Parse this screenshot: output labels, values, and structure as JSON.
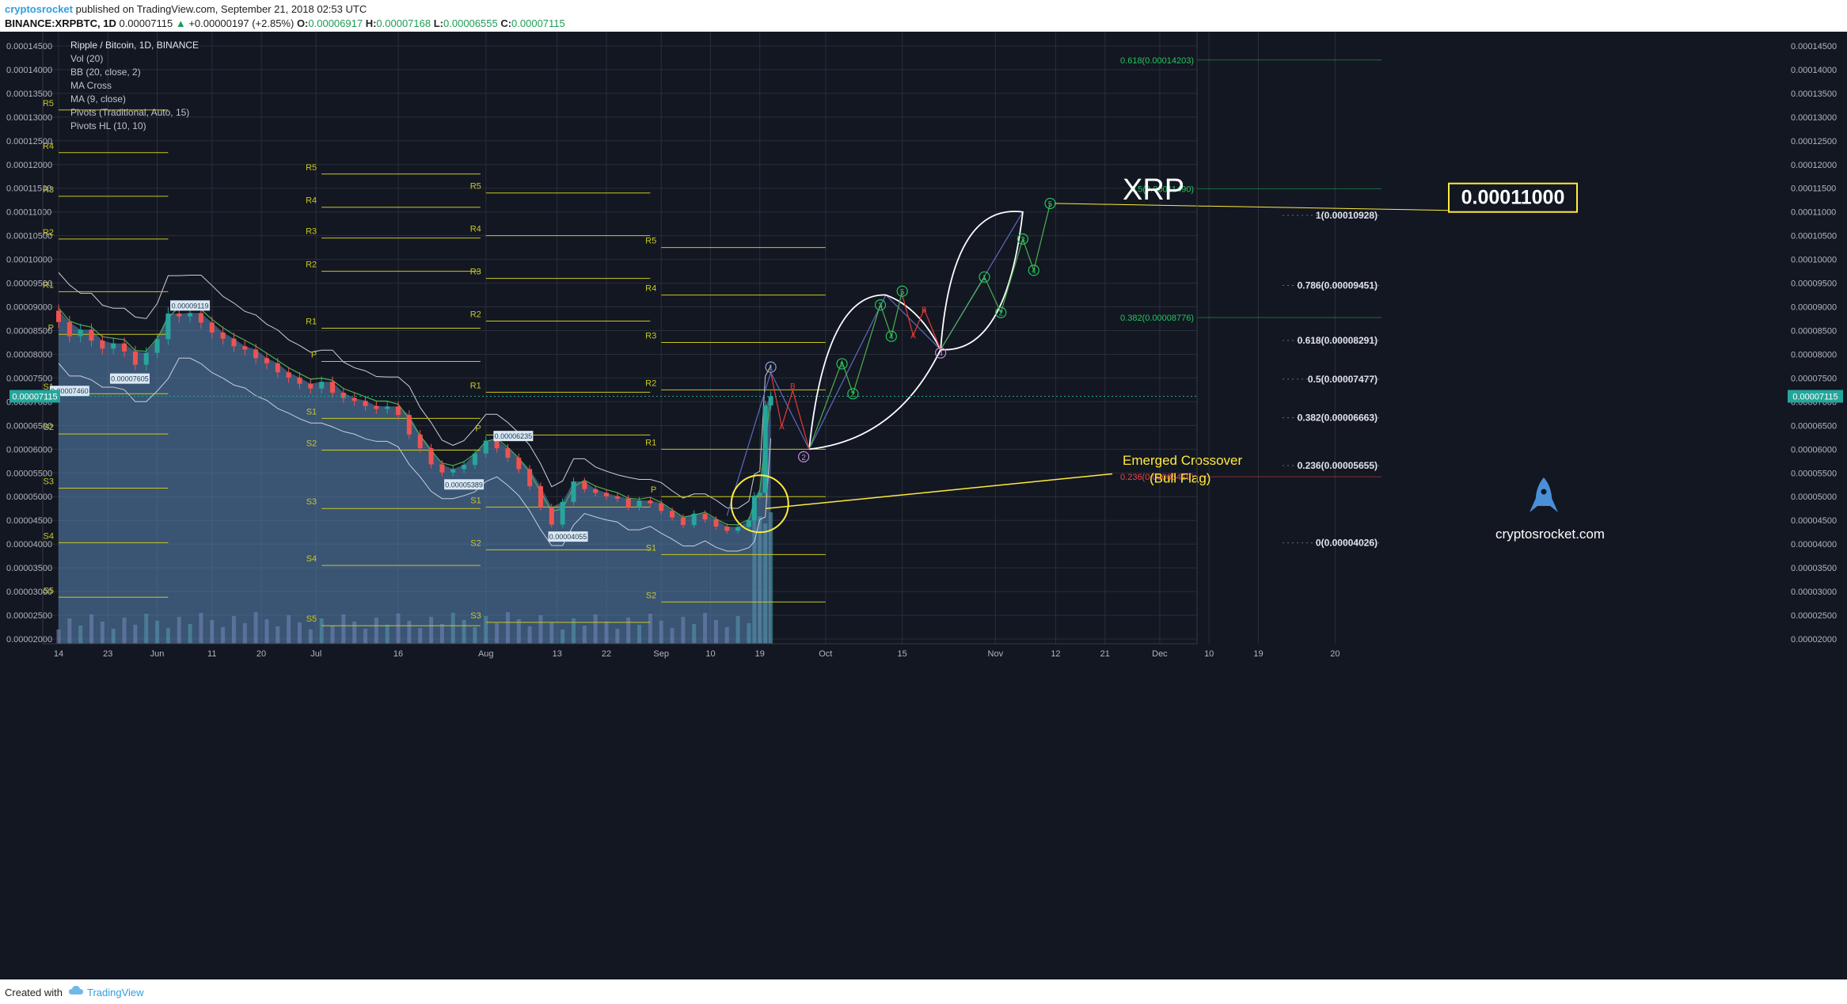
{
  "header": {
    "author": "cryptosrocket",
    "published": "published on TradingView.com, September 21, 2018 02:53 UTC",
    "symbol": "BINANCE:XRPBTC, 1D",
    "last": "0.00007115",
    "change": "+0.00000197 (+2.85%)",
    "o_label": "O:",
    "o": "0.00006917",
    "h_label": "H:",
    "h": "0.00007168",
    "l_label": "L:",
    "l": "0.00006555",
    "c_label": "C:",
    "c": "0.00007115",
    "up_arrow": "▲"
  },
  "footer": {
    "created_with": "Created with",
    "brand": "TradingView"
  },
  "colors": {
    "background": "#131722",
    "grid": "#2a2e39",
    "text": "#b2b5be",
    "up": "#26a69a",
    "down": "#ef5350",
    "pivot": "#c8c81e",
    "fib_green": "#22c55e",
    "fib_red": "#ef4444",
    "wave_green": "#4caf50",
    "wave_red": "#e53935",
    "wave_blue": "#5c6bc0",
    "band_fill": "#5b86b8",
    "highlight": "#ffeb3b"
  },
  "chart_data": {
    "type": "candlestick",
    "title": "Ripple / Bitcoin, 1D, BINANCE",
    "indicators": [
      "Vol (20)",
      "BB (20, close, 2)",
      "MA Cross",
      "MA (9, close)",
      "Pivots (Traditional, Auto, 15)",
      "Pivots HL (10, 10)"
    ],
    "y_axis": {
      "ylim": [
        1.9e-05,
        0.000148
      ],
      "ticks": [
        "0.00014500",
        "0.00014000",
        "0.00013500",
        "0.00013000",
        "0.00012500",
        "0.00012000",
        "0.00011500",
        "0.00011000",
        "0.00010500",
        "0.00010000",
        "0.00009500",
        "0.00009000",
        "0.00008500",
        "0.00008000",
        "0.00007500",
        "0.00007000",
        "0.00006500",
        "0.00006000",
        "0.00005500",
        "0.00005000",
        "0.00004500",
        "0.00004000",
        "0.00003500",
        "0.00003000",
        "0.00002500",
        "0.00002000"
      ],
      "tick_values": [
        0.000145,
        0.00014,
        0.000135,
        0.00013,
        0.000125,
        0.00012,
        0.000115,
        0.00011,
        0.000105,
        0.0001,
        9.5e-05,
        9e-05,
        8.5e-05,
        8e-05,
        7.5e-05,
        7e-05,
        6.5e-05,
        6e-05,
        5.5e-05,
        5e-05,
        4.5e-05,
        4e-05,
        3.5e-05,
        3e-05,
        2.5e-05,
        2e-05
      ],
      "current_price_label": "0.00007115",
      "current_price": 7.115e-05
    },
    "x_axis": {
      "ticks": [
        "14",
        "23",
        "Jun",
        "11",
        "20",
        "Jul",
        "16",
        "Aug",
        "13",
        "22",
        "Sep",
        "10",
        "19",
        "Oct",
        "15",
        "Nov",
        "12",
        "21",
        "Dec",
        "10",
        "19",
        "20"
      ],
      "tick_days": [
        0,
        9,
        18,
        28,
        37,
        47,
        62,
        78,
        91,
        100,
        110,
        119,
        128,
        140,
        154,
        171,
        182,
        191,
        201,
        210,
        219,
        233
      ]
    },
    "price_series": [
      {
        "d": 0,
        "o": 8.92e-05,
        "c": 8.68e-05
      },
      {
        "d": 2,
        "o": 8.68e-05,
        "c": 8.38e-05
      },
      {
        "d": 4,
        "o": 8.38e-05,
        "c": 8.52e-05
      },
      {
        "d": 6,
        "o": 8.52e-05,
        "c": 8.29e-05
      },
      {
        "d": 8,
        "o": 8.29e-05,
        "c": 8.12e-05
      },
      {
        "d": 10,
        "o": 8.12e-05,
        "c": 8.23e-05
      },
      {
        "d": 12,
        "o": 8.23e-05,
        "c": 8.06e-05
      },
      {
        "d": 14,
        "o": 8.06e-05,
        "c": 7.78e-05
      },
      {
        "d": 16,
        "o": 7.78e-05,
        "c": 8.03e-05
      },
      {
        "d": 18,
        "o": 8.03e-05,
        "c": 8.32e-05
      },
      {
        "d": 20,
        "o": 8.32e-05,
        "c": 8.86e-05
      },
      {
        "d": 22,
        "o": 8.86e-05,
        "c": 8.8e-05
      },
      {
        "d": 24,
        "o": 8.8e-05,
        "c": 8.87e-05
      },
      {
        "d": 26,
        "o": 8.87e-05,
        "c": 8.67e-05
      },
      {
        "d": 28,
        "o": 8.67e-05,
        "c": 8.46e-05
      },
      {
        "d": 30,
        "o": 8.46e-05,
        "c": 8.33e-05
      },
      {
        "d": 32,
        "o": 8.33e-05,
        "c": 8.17e-05
      },
      {
        "d": 34,
        "o": 8.17e-05,
        "c": 8.1e-05
      },
      {
        "d": 36,
        "o": 8.1e-05,
        "c": 7.92e-05
      },
      {
        "d": 38,
        "o": 7.92e-05,
        "c": 7.81e-05
      },
      {
        "d": 40,
        "o": 7.81e-05,
        "c": 7.62e-05
      },
      {
        "d": 42,
        "o": 7.62e-05,
        "c": 7.51e-05
      },
      {
        "d": 44,
        "o": 7.51e-05,
        "c": 7.38e-05
      },
      {
        "d": 46,
        "o": 7.38e-05,
        "c": 7.28e-05
      },
      {
        "d": 48,
        "o": 7.28e-05,
        "c": 7.42e-05
      },
      {
        "d": 50,
        "o": 7.42e-05,
        "c": 7.19e-05
      },
      {
        "d": 52,
        "o": 7.19e-05,
        "c": 7.08e-05
      },
      {
        "d": 54,
        "o": 7.08e-05,
        "c": 7.02e-05
      },
      {
        "d": 56,
        "o": 7.02e-05,
        "c": 6.91e-05
      },
      {
        "d": 58,
        "o": 6.91e-05,
        "c": 6.85e-05
      },
      {
        "d": 60,
        "o": 6.85e-05,
        "c": 6.9e-05
      },
      {
        "d": 62,
        "o": 6.9e-05,
        "c": 6.72e-05
      },
      {
        "d": 64,
        "o": 6.72e-05,
        "c": 6.31e-05
      },
      {
        "d": 66,
        "o": 6.31e-05,
        "c": 6.02e-05
      },
      {
        "d": 68,
        "o": 6.02e-05,
        "c": 5.68e-05
      },
      {
        "d": 70,
        "o": 5.68e-05,
        "c": 5.51e-05
      },
      {
        "d": 72,
        "o": 5.51e-05,
        "c": 5.58e-05
      },
      {
        "d": 74,
        "o": 5.58e-05,
        "c": 5.67e-05
      },
      {
        "d": 76,
        "o": 5.67e-05,
        "c": 5.91e-05
      },
      {
        "d": 78,
        "o": 5.91e-05,
        "c": 6.18e-05
      },
      {
        "d": 80,
        "o": 6.18e-05,
        "c": 6.02e-05
      },
      {
        "d": 82,
        "o": 6.02e-05,
        "c": 5.82e-05
      },
      {
        "d": 84,
        "o": 5.82e-05,
        "c": 5.58e-05
      },
      {
        "d": 86,
        "o": 5.58e-05,
        "c": 5.22e-05
      },
      {
        "d": 88,
        "o": 5.22e-05,
        "c": 4.78e-05
      },
      {
        "d": 90,
        "o": 4.78e-05,
        "c": 4.41e-05
      },
      {
        "d": 92,
        "o": 4.41e-05,
        "c": 4.89e-05
      },
      {
        "d": 94,
        "o": 4.89e-05,
        "c": 5.32e-05
      },
      {
        "d": 96,
        "o": 5.32e-05,
        "c": 5.16e-05
      },
      {
        "d": 98,
        "o": 5.16e-05,
        "c": 5.08e-05
      },
      {
        "d": 100,
        "o": 5.08e-05,
        "c": 5.01e-05
      },
      {
        "d": 102,
        "o": 5.01e-05,
        "c": 4.96e-05
      },
      {
        "d": 104,
        "o": 4.96e-05,
        "c": 4.78e-05
      },
      {
        "d": 106,
        "o": 4.78e-05,
        "c": 4.92e-05
      },
      {
        "d": 108,
        "o": 4.92e-05,
        "c": 4.86e-05
      },
      {
        "d": 110,
        "o": 4.86e-05,
        "c": 4.7e-05
      },
      {
        "d": 112,
        "o": 4.7e-05,
        "c": 4.56e-05
      },
      {
        "d": 114,
        "o": 4.56e-05,
        "c": 4.4e-05
      },
      {
        "d": 116,
        "o": 4.4e-05,
        "c": 4.64e-05
      },
      {
        "d": 118,
        "o": 4.64e-05,
        "c": 4.52e-05
      },
      {
        "d": 120,
        "o": 4.52e-05,
        "c": 4.37e-05
      },
      {
        "d": 122,
        "o": 4.37e-05,
        "c": 4.28e-05
      },
      {
        "d": 124,
        "o": 4.28e-05,
        "c": 4.36e-05
      },
      {
        "d": 126,
        "o": 4.36e-05,
        "c": 4.5e-05
      },
      {
        "d": 127,
        "o": 4.5e-05,
        "c": 5.02e-05
      },
      {
        "d": 128,
        "o": 5.02e-05,
        "c": 5.08e-05
      },
      {
        "d": 129,
        "o": 5.08e-05,
        "c": 6.92e-05
      },
      {
        "d": 130,
        "o": 6.92e-05,
        "c": 7.115e-05
      }
    ],
    "price_labels": [
      {
        "d": 2,
        "v": 7.22e-05,
        "text": "0.00007460"
      },
      {
        "d": 13,
        "v": 7.48e-05,
        "text": "0.00007605"
      },
      {
        "d": 24,
        "v": 9.02e-05,
        "text": "0.00009119"
      },
      {
        "d": 74,
        "v": 5.25e-05,
        "text": "0.00005389"
      },
      {
        "d": 83,
        "v": 6.27e-05,
        "text": "0.00006235"
      },
      {
        "d": 93,
        "v": 4.15e-05,
        "text": "0.00004055"
      }
    ],
    "pivot_blocks": [
      {
        "start": 0,
        "end": 20,
        "levels": [
          {
            "name": "R5",
            "v": 0.0001315
          },
          {
            "name": "R4",
            "v": 0.0001225
          },
          {
            "name": "R3",
            "v": 0.0001133
          },
          {
            "name": "R2",
            "v": 0.0001043
          },
          {
            "name": "R1",
            "v": 9.32e-05
          },
          {
            "name": "P",
            "v": 8.42e-05
          },
          {
            "name": "S1",
            "v": 7.17e-05
          },
          {
            "name": "S2",
            "v": 6.32e-05
          },
          {
            "name": "S3",
            "v": 5.18e-05
          },
          {
            "name": "S4",
            "v": 4.03e-05
          },
          {
            "name": "S5",
            "v": 2.88e-05
          }
        ]
      },
      {
        "start": 48,
        "end": 77,
        "levels": [
          {
            "name": "R5",
            "v": 0.000118
          },
          {
            "name": "R4",
            "v": 0.000111
          },
          {
            "name": "R3",
            "v": 0.0001045
          },
          {
            "name": "R2",
            "v": 9.75e-05
          },
          {
            "name": "R1",
            "v": 8.55e-05
          },
          {
            "name": "P",
            "v": 7.85e-05
          },
          {
            "name": "S1",
            "v": 6.65e-05
          },
          {
            "name": "S2",
            "v": 5.98e-05
          },
          {
            "name": "S3",
            "v": 4.75e-05
          },
          {
            "name": "S4",
            "v": 3.55e-05
          },
          {
            "name": "S5",
            "v": 2.28e-05
          }
        ]
      },
      {
        "start": 78,
        "end": 108,
        "levels": [
          {
            "name": "R5",
            "v": 0.000114
          },
          {
            "name": "R4",
            "v": 0.000105
          },
          {
            "name": "R3",
            "v": 9.6e-05
          },
          {
            "name": "R2",
            "v": 8.7e-05
          },
          {
            "name": "R1",
            "v": 7.2e-05
          },
          {
            "name": "P",
            "v": 6.3e-05
          },
          {
            "name": "S1",
            "v": 4.78e-05
          },
          {
            "name": "S2",
            "v": 3.88e-05
          },
          {
            "name": "S3",
            "v": 2.35e-05
          }
        ]
      },
      {
        "start": 110,
        "end": 140,
        "levels": [
          {
            "name": "R5",
            "v": 0.0001025
          },
          {
            "name": "R4",
            "v": 9.25e-05
          },
          {
            "name": "R3",
            "v": 8.25e-05
          },
          {
            "name": "R2",
            "v": 7.25e-05
          },
          {
            "name": "R1",
            "v": 6e-05
          },
          {
            "name": "P",
            "v": 5e-05
          },
          {
            "name": "S1",
            "v": 3.78e-05
          },
          {
            "name": "S2",
            "v": 2.78e-05
          }
        ]
      }
    ],
    "fib_retracement": [
      {
        "label": "1(0.00010928)",
        "v": 0.00010928
      },
      {
        "label": "0.786(0.00009451)",
        "v": 9.451e-05
      },
      {
        "label": "0.618(0.00008291)",
        "v": 8.291e-05
      },
      {
        "label": "0.5(0.00007477)",
        "v": 7.477e-05
      },
      {
        "label": "0.382(0.00006663)",
        "v": 6.663e-05
      },
      {
        "label": "0.236(0.00005655)",
        "v": 5.655e-05
      },
      {
        "label": "0(0.00004026)",
        "v": 4.026e-05
      }
    ],
    "fib_extension": [
      {
        "label": "0.618(0.00014203)",
        "v": 0.00014203,
        "color": "green"
      },
      {
        "label": "0.5(0.00011490)",
        "v": 0.0001149,
        "color": "green"
      },
      {
        "label": "0.382(0.00008776)",
        "v": 8.776e-05,
        "color": "green"
      },
      {
        "label": "0.236(0.00005419)",
        "v": 5.419e-05,
        "color": "red"
      }
    ],
    "wave_path_main": [
      {
        "d": 122,
        "v": 4.6e-05,
        "label": ""
      },
      {
        "d": 130,
        "v": 7.62e-05,
        "label": "1"
      },
      {
        "d": 137,
        "v": 6e-05,
        "label": "2"
      },
      {
        "d": 151,
        "v": 9.25e-05,
        "label": "5"
      },
      {
        "d": 161,
        "v": 8.1e-05,
        "label": "4"
      },
      {
        "d": 176,
        "v": 0.00011,
        "label": "5"
      }
    ],
    "wave_labels": [
      {
        "d": 130,
        "v": 7.73e-05,
        "text": "1",
        "color": "blue"
      },
      {
        "d": 136,
        "v": 5.84e-05,
        "text": "2",
        "color": "purple"
      },
      {
        "d": 154,
        "v": 9.33e-05,
        "text": "5",
        "color": "green"
      },
      {
        "d": 161,
        "v": 8.03e-05,
        "text": "4",
        "color": "purple"
      },
      {
        "d": 181,
        "v": 0.0001118,
        "text": "5",
        "color": "green"
      },
      {
        "d": 143,
        "v": 7.8e-05,
        "text": "1",
        "color": "green"
      },
      {
        "d": 145,
        "v": 7.17e-05,
        "text": "2",
        "color": "green"
      },
      {
        "d": 150,
        "v": 9.04e-05,
        "text": "3",
        "color": "green"
      },
      {
        "d": 152,
        "v": 8.38e-05,
        "text": "4",
        "color": "green"
      },
      {
        "d": 169,
        "v": 9.63e-05,
        "text": "1",
        "color": "green"
      },
      {
        "d": 172,
        "v": 8.88e-05,
        "text": "2",
        "color": "green"
      },
      {
        "d": 176,
        "v": 0.0001043,
        "text": "3",
        "color": "green"
      },
      {
        "d": 178,
        "v": 9.77e-05,
        "text": "4",
        "color": "green"
      },
      {
        "d": 134,
        "v": 7.34e-05,
        "text": "B",
        "color": "red"
      },
      {
        "d": 132,
        "v": 6.48e-05,
        "text": "A",
        "color": "red"
      },
      {
        "d": 158,
        "v": 8.95e-05,
        "text": "B",
        "color": "red"
      },
      {
        "d": 156,
        "v": 8.4e-05,
        "text": "A",
        "color": "red"
      }
    ],
    "annotations": {
      "big_label": "XRP",
      "target": "0.00011000",
      "target_value": 0.00011,
      "crossover_line1": "Emerged Crossover",
      "crossover_line2": "(Bull Flag)",
      "brand_text": "cryptosrocket.com"
    }
  }
}
